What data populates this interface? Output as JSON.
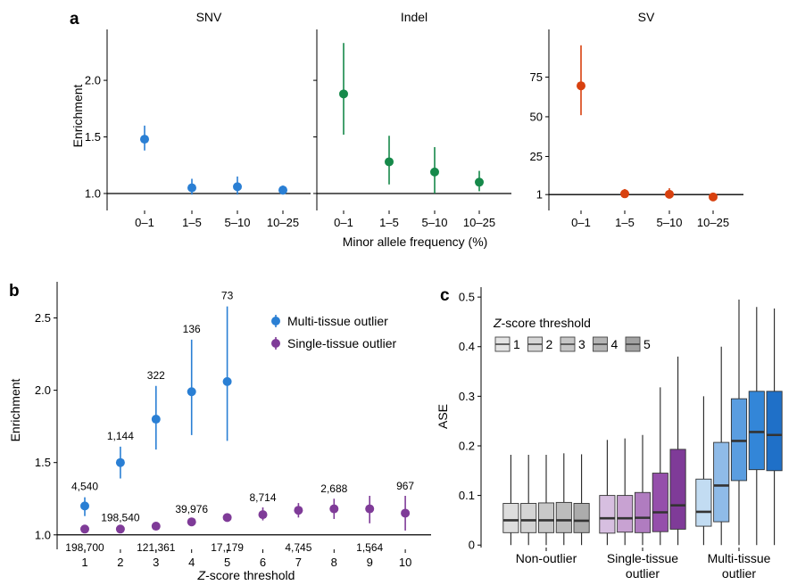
{
  "panel_labels": {
    "a": "a",
    "b": "b",
    "c": "c"
  },
  "colors": {
    "snv": "#2a7fd4",
    "indel": "#16894a",
    "sv": "#d8410f",
    "multi": "#2a7fd4",
    "single": "#7f3b98",
    "axis": "#000000"
  },
  "chart_data": [
    {
      "id": "a",
      "type": "scatter",
      "subtype": "point-with-error-bars",
      "xlabel": "Minor allele frequency (%)",
      "ylabel": "Enrichment",
      "categories": [
        "0–1",
        "1–5",
        "5–10",
        "10–25"
      ],
      "reference_line": 1.0,
      "facets": [
        {
          "title": "SNV",
          "color": "#2a7fd4",
          "ylim": [
            0.85,
            2.45
          ],
          "yticks": [
            1.0,
            1.5,
            2.0
          ],
          "yticklabels": [
            "1.0",
            "1.5",
            "2.0"
          ],
          "values": [
            1.48,
            1.05,
            1.06,
            1.03
          ],
          "lower": [
            1.38,
            0.99,
            0.99,
            0.99
          ],
          "upper": [
            1.6,
            1.13,
            1.15,
            1.07
          ]
        },
        {
          "title": "Indel",
          "color": "#16894a",
          "ylim": [
            0.85,
            2.45
          ],
          "yticks": [
            1.0,
            1.5,
            2.0
          ],
          "yticklabels": [],
          "values": [
            1.88,
            1.28,
            1.19,
            1.1
          ],
          "lower": [
            1.52,
            1.08,
            1.0,
            1.02
          ],
          "upper": [
            2.33,
            1.51,
            1.41,
            1.2
          ]
        },
        {
          "title": "SV",
          "color": "#d8410f",
          "ylim": [
            -9,
            105
          ],
          "yticks": [
            1,
            25,
            50,
            75
          ],
          "yticklabels": [
            "1",
            "25",
            "50",
            "75"
          ],
          "values": [
            69.5,
            1.5,
            1.2,
            -0.5
          ],
          "lower": [
            51,
            0,
            -0.5,
            -1
          ],
          "upper": [
            95,
            4.5,
            5,
            0.5
          ]
        }
      ]
    },
    {
      "id": "b",
      "type": "scatter",
      "subtype": "point-with-error-bars",
      "xlabel": "Z-score threshold",
      "ylabel": "Enrichment",
      "x": [
        1,
        2,
        3,
        4,
        5,
        6,
        7,
        8,
        9,
        10
      ],
      "ylim": [
        0.9,
        2.75
      ],
      "yticks": [
        1.0,
        1.5,
        2.0,
        2.5
      ],
      "yticklabels": [
        "1.0",
        "1.5",
        "2.0",
        "2.5"
      ],
      "reference_line": 1.0,
      "legend_position": "top-right",
      "series": [
        {
          "name": "Multi-tissue outlier",
          "color": "#2a7fd4",
          "x": [
            1,
            2,
            3,
            4,
            5
          ],
          "values": [
            1.2,
            1.5,
            1.8,
            1.99,
            2.06
          ],
          "lower": [
            1.13,
            1.39,
            1.59,
            1.69,
            1.65
          ],
          "upper": [
            1.26,
            1.61,
            2.03,
            2.35,
            2.58
          ],
          "counts": [
            "4,540",
            "1,144",
            "322",
            "136",
            "73"
          ]
        },
        {
          "name": "Single-tissue outlier",
          "color": "#7f3b98",
          "x": [
            1,
            2,
            3,
            4,
            5,
            6,
            7,
            8,
            9,
            10
          ],
          "values": [
            1.04,
            1.04,
            1.06,
            1.09,
            1.12,
            1.14,
            1.17,
            1.18,
            1.18,
            1.15
          ],
          "lower": [
            1.03,
            1.03,
            1.05,
            1.08,
            1.1,
            1.1,
            1.12,
            1.11,
            1.08,
            1.03
          ],
          "upper": [
            1.05,
            1.05,
            1.07,
            1.11,
            1.14,
            1.19,
            1.22,
            1.25,
            1.27,
            1.27
          ],
          "counts": [
            "198,700",
            "198,540",
            "121,361",
            "39,976",
            "17,179",
            "8,714",
            "4,745",
            "2,688",
            "1,564",
            "967"
          ]
        }
      ]
    },
    {
      "id": "c",
      "type": "boxplot",
      "ylabel": "ASE",
      "ylim": [
        -0.005,
        0.52
      ],
      "yticks": [
        0,
        0.1,
        0.2,
        0.3,
        0.4,
        0.5
      ],
      "yticklabels": [
        "0",
        "0.1",
        "0.2",
        "0.3",
        "0.4",
        "0.5"
      ],
      "legend_title": "Z-score threshold",
      "legend_labels": [
        "1",
        "2",
        "3",
        "4",
        "5"
      ],
      "groups": [
        {
          "label_lines": [
            "Non-outlier"
          ],
          "colors": [
            "#dddddd",
            "#d4d4d4",
            "#c8c8c8",
            "#bcbcbc",
            "#acacac"
          ],
          "boxes": [
            {
              "whislo": 0,
              "q1": 0.025,
              "med": 0.05,
              "q3": 0.084,
              "whishi": 0.182
            },
            {
              "whislo": 0,
              "q1": 0.025,
              "med": 0.05,
              "q3": 0.084,
              "whishi": 0.182
            },
            {
              "whislo": 0,
              "q1": 0.025,
              "med": 0.05,
              "q3": 0.085,
              "whishi": 0.182
            },
            {
              "whislo": 0,
              "q1": 0.025,
              "med": 0.05,
              "q3": 0.086,
              "whishi": 0.185
            },
            {
              "whislo": 0,
              "q1": 0.025,
              "med": 0.049,
              "q3": 0.084,
              "whishi": 0.183
            }
          ]
        },
        {
          "label_lines": [
            "Single-tissue",
            "outlier"
          ],
          "colors": [
            "#d7bfe0",
            "#c8a2d2",
            "#b07cc0",
            "#954fab",
            "#7f3b98"
          ],
          "boxes": [
            {
              "whislo": 0,
              "q1": 0.024,
              "med": 0.054,
              "q3": 0.1,
              "whishi": 0.212
            },
            {
              "whislo": 0,
              "q1": 0.026,
              "med": 0.054,
              "q3": 0.1,
              "whishi": 0.215
            },
            {
              "whislo": 0,
              "q1": 0.025,
              "med": 0.055,
              "q3": 0.106,
              "whishi": 0.222
            },
            {
              "whislo": 0,
              "q1": 0.027,
              "med": 0.066,
              "q3": 0.145,
              "whishi": 0.318
            },
            {
              "whislo": 0,
              "q1": 0.032,
              "med": 0.08,
              "q3": 0.193,
              "whishi": 0.38
            }
          ]
        },
        {
          "label_lines": [
            "Multi-tissue",
            "outlier"
          ],
          "colors": [
            "#c2dcf2",
            "#8fbbe8",
            "#5a9de0",
            "#3386d8",
            "#1f70c8"
          ],
          "boxes": [
            {
              "whislo": 0,
              "q1": 0.038,
              "med": 0.067,
              "q3": 0.133,
              "whishi": 0.3
            },
            {
              "whislo": 0,
              "q1": 0.047,
              "med": 0.12,
              "q3": 0.207,
              "whishi": 0.4
            },
            {
              "whislo": 0,
              "q1": 0.13,
              "med": 0.21,
              "q3": 0.295,
              "whishi": 0.495
            },
            {
              "whislo": 0,
              "q1": 0.152,
              "med": 0.228,
              "q3": 0.31,
              "whishi": 0.48
            },
            {
              "whislo": 0,
              "q1": 0.15,
              "med": 0.222,
              "q3": 0.31,
              "whishi": 0.477
            }
          ]
        }
      ]
    }
  ]
}
